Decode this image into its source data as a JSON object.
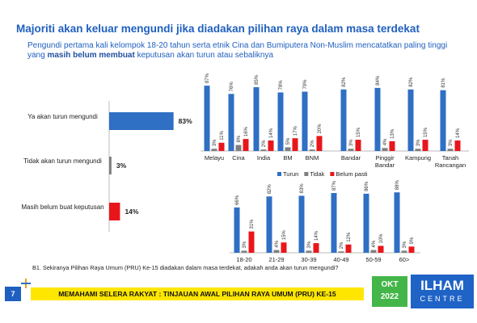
{
  "header": {
    "title": "Majoriti akan keluar mengundi jika diadakan pilihan raya dalam masa terdekat",
    "subtitle": [
      "Pengundi pertama kali kelompok 18-20 tahun serta etnik Cina dan Bumiputera Non-Muslim mencatatkan paling tinggi yang ",
      "masih belum membuat",
      " keputusan akan turun atau sebaliknya"
    ]
  },
  "chart_data": [
    {
      "type": "hbar",
      "categories": [
        "Ya akan turun mengundi",
        "Tidak akan turun mengundi",
        "Masih belum buat keputusan"
      ],
      "values": [
        83,
        3,
        14
      ],
      "value_labels": [
        "83%",
        "3%",
        "14%"
      ],
      "colors": [
        "#2f6fc4",
        "#7f7f7f",
        "#e8161b"
      ]
    },
    {
      "type": "grouped_bar",
      "categories": [
        "Melayu",
        "Cina",
        "India",
        "BM",
        "BNM",
        "Bandar",
        "Pinggir Bandar",
        "Kampung",
        "Tanah Rancangan"
      ],
      "legend": "bottom",
      "series": [
        {
          "name": "Turun",
          "color": "#2f6fc4",
          "values": [
            87,
            76,
            85,
            78,
            79,
            82,
            84,
            82,
            81
          ],
          "value_labels": [
            "87%",
            "76%",
            "85%",
            "78%",
            "79%",
            "82%",
            "84%",
            "82%",
            "81%"
          ]
        },
        {
          "name": "Tidak",
          "color": "#7f7f7f",
          "values": [
            3,
            8,
            2,
            5,
            2,
            3,
            4,
            3,
            3
          ],
          "value_labels": [
            "3%",
            "8%",
            "2%",
            "5%",
            "2%",
            "3%",
            "4%",
            "3%",
            "3%"
          ]
        },
        {
          "name": "Belum pasti",
          "color": "#e8161b",
          "values": [
            11,
            16,
            14,
            17,
            20,
            15,
            13,
            15,
            14
          ],
          "value_labels": [
            "11%",
            "16%",
            "14%",
            "17%",
            "20%",
            "15%",
            "13%",
            "15%",
            "14%"
          ]
        }
      ]
    },
    {
      "type": "grouped_bar",
      "categories": [
        "18-20",
        "21-29",
        "30-39",
        "40-49",
        "50-59",
        "60>"
      ],
      "series": [
        {
          "color": "#2f6fc4",
          "values": [
            66,
            82,
            83,
            87,
            86,
            88
          ],
          "value_labels": [
            "66%",
            "82%",
            "83%",
            "87%",
            "86%",
            "88%"
          ]
        },
        {
          "color": "#7f7f7f",
          "values": [
            3,
            4,
            3,
            2,
            4,
            3
          ],
          "value_labels": [
            "3%",
            "4%",
            "3%",
            "2%",
            "4%",
            "3%"
          ]
        },
        {
          "color": "#e8161b",
          "values": [
            31,
            15,
            14,
            12,
            10,
            9
          ],
          "value_labels": [
            "31%",
            "15%",
            "14%",
            "12%",
            "10%",
            "9%"
          ]
        }
      ]
    }
  ],
  "footnote": "B1. Sekiranya Pilihan Raya Umum (PRU) Ke-15 diadakan dalam masa terdekat, adakah anda akan turun mengundi?",
  "footer": {
    "page": "7",
    "title": "MEMAHAMI SELERA RAKYAT : TINJAUAN AWAL PILIHAN RAYA UMUM (PRU) KE-15",
    "date": [
      "OKT",
      "2022"
    ],
    "logo": [
      "ILHAM",
      "CENTRE"
    ]
  }
}
